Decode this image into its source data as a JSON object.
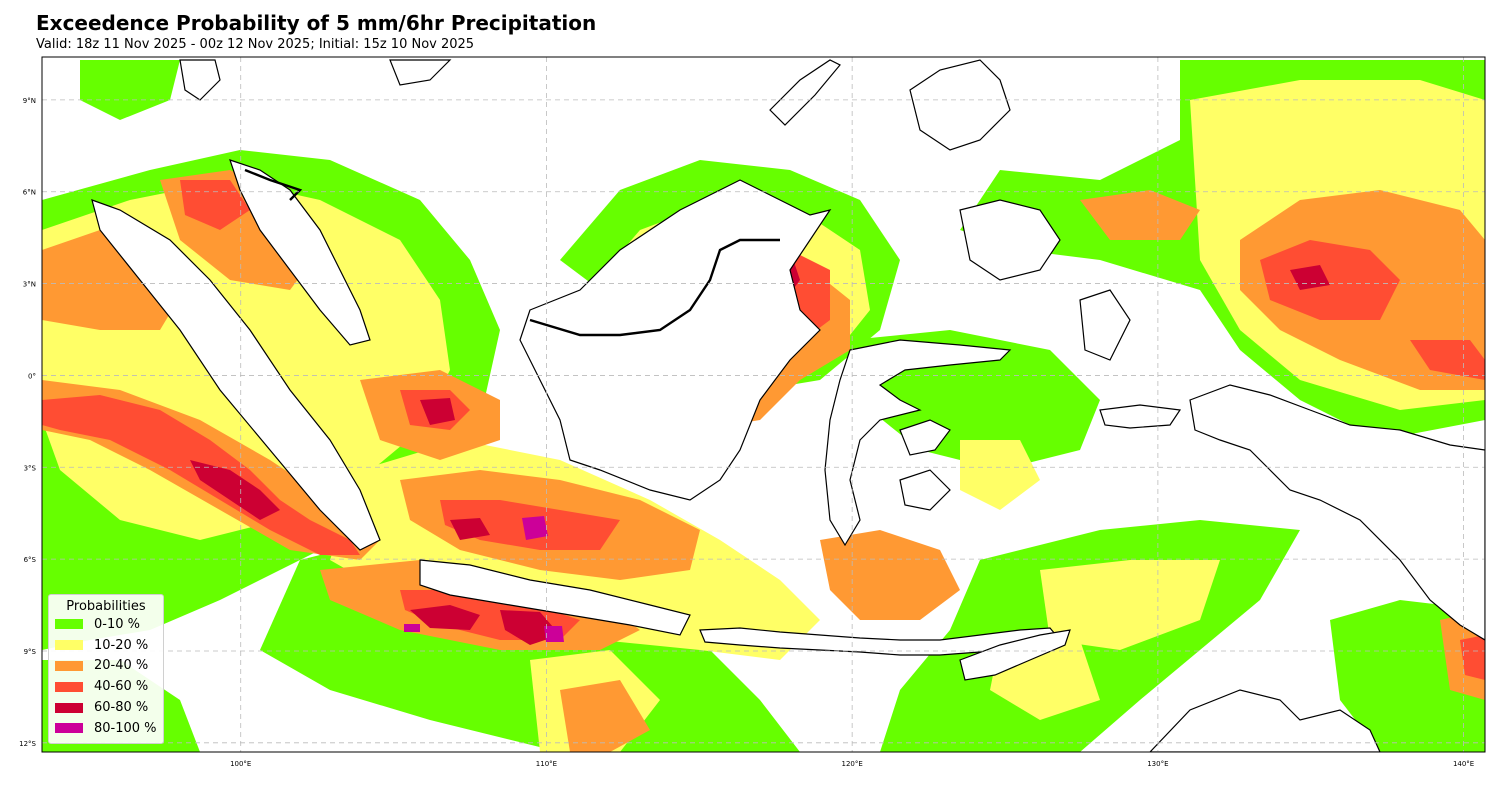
{
  "title": "Exceedence Probability of 5 mm/6hr Precipitation",
  "subtitle": "Valid: 18z 11 Nov 2025 - 00z 12 Nov 2025; Initial: 15z 10 Nov 2025",
  "map": {
    "lon_range": [
      93.5,
      140.7
    ],
    "lat_range": [
      -12.3,
      10.4
    ],
    "x_ticks": [
      {
        "value": 100,
        "label": "100°E"
      },
      {
        "value": 110,
        "label": "110°E"
      },
      {
        "value": 120,
        "label": "120°E"
      },
      {
        "value": 130,
        "label": "130°E"
      },
      {
        "value": 140,
        "label": "140°E"
      }
    ],
    "y_ticks": [
      {
        "value": 9,
        "label": "9°N"
      },
      {
        "value": 6,
        "label": "6°N"
      },
      {
        "value": 3,
        "label": "3°N"
      },
      {
        "value": 0,
        "label": "0°"
      },
      {
        "value": -3,
        "label": "3°S"
      },
      {
        "value": -6,
        "label": "6°S"
      },
      {
        "value": -9,
        "label": "9°S"
      },
      {
        "value": -12,
        "label": "12°S"
      }
    ],
    "grid": true
  },
  "legend": {
    "title": "Probabilities",
    "placement": "lower-left",
    "items": [
      {
        "label": "0-10 %",
        "color": "#66ff00"
      },
      {
        "label": "10-20 %",
        "color": "#ffff66"
      },
      {
        "label": "20-40 %",
        "color": "#ff9933"
      },
      {
        "label": "40-60 %",
        "color": "#ff4d33"
      },
      {
        "label": "60-80 %",
        "color": "#cc0033"
      },
      {
        "label": "80-100 %",
        "color": "#cc0099"
      }
    ]
  }
}
